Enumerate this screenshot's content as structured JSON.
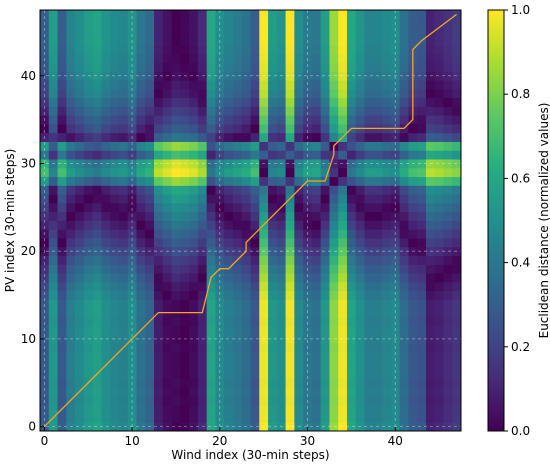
{
  "chart_data": {
    "type": "heatmap",
    "title": "",
    "xlabel": "Wind index (30-min steps)",
    "ylabel": "PV index (30-min steps)",
    "colorbar_label": "Euclidean distance (normalized values)",
    "colormap": "viridis",
    "x_range": [
      0,
      47
    ],
    "y_range": [
      0,
      47
    ],
    "x_ticks": [
      0,
      10,
      20,
      30,
      40
    ],
    "y_ticks": [
      0,
      10,
      20,
      30,
      40
    ],
    "colorbar_ticks": [
      0.0,
      0.2,
      0.4,
      0.6,
      0.8,
      1.0
    ],
    "colorbar_tick_labels": [
      "0.0",
      "0.2",
      "0.4",
      "0.6",
      "0.8",
      "1.0"
    ],
    "grid": true,
    "wind_profile": [
      0.3,
      0.55,
      0.3,
      0.45,
      0.5,
      0.55,
      0.58,
      0.52,
      0.48,
      0.46,
      0.52,
      0.4,
      0.35,
      0.1,
      0.05,
      0.0,
      0.02,
      0.05,
      0.12,
      0.6,
      0.5,
      0.45,
      0.42,
      0.38,
      0.3,
      1.0,
      0.55,
      0.52,
      1.0,
      0.5,
      0.42,
      0.4,
      0.55,
      0.85,
      1.0,
      0.6,
      0.52,
      0.45,
      0.45,
      0.48,
      0.5,
      0.38,
      0.3,
      0.28,
      0.1,
      0.12,
      0.15,
      0.18
    ],
    "pv_profile": [
      0.0,
      0.02,
      0.02,
      0.03,
      0.02,
      0.03,
      0.02,
      0.02,
      0.02,
      0.03,
      0.02,
      0.02,
      0.03,
      0.02,
      0.02,
      0.05,
      0.08,
      0.12,
      0.16,
      0.2,
      0.25,
      0.3,
      0.35,
      0.4,
      0.45,
      0.5,
      0.55,
      0.6,
      0.85,
      1.0,
      0.95,
      0.7,
      0.85,
      0.4,
      0.3,
      0.25,
      0.2,
      0.15,
      0.1,
      0.08,
      0.05,
      0.03,
      0.02,
      0.01,
      0.0,
      0.0,
      0.0,
      0.0
    ],
    "warping_path": [
      [
        0,
        0
      ],
      [
        13,
        13
      ],
      [
        18,
        13
      ],
      [
        19,
        17
      ],
      [
        20,
        18
      ],
      [
        21,
        18
      ],
      [
        23,
        20
      ],
      [
        23,
        21
      ],
      [
        30,
        28
      ],
      [
        32,
        28
      ],
      [
        33,
        31
      ],
      [
        33,
        32
      ],
      [
        34,
        33
      ],
      [
        35,
        34
      ],
      [
        41,
        34
      ],
      [
        42,
        35
      ],
      [
        42,
        43
      ],
      [
        43,
        44
      ],
      [
        47,
        47
      ]
    ]
  }
}
